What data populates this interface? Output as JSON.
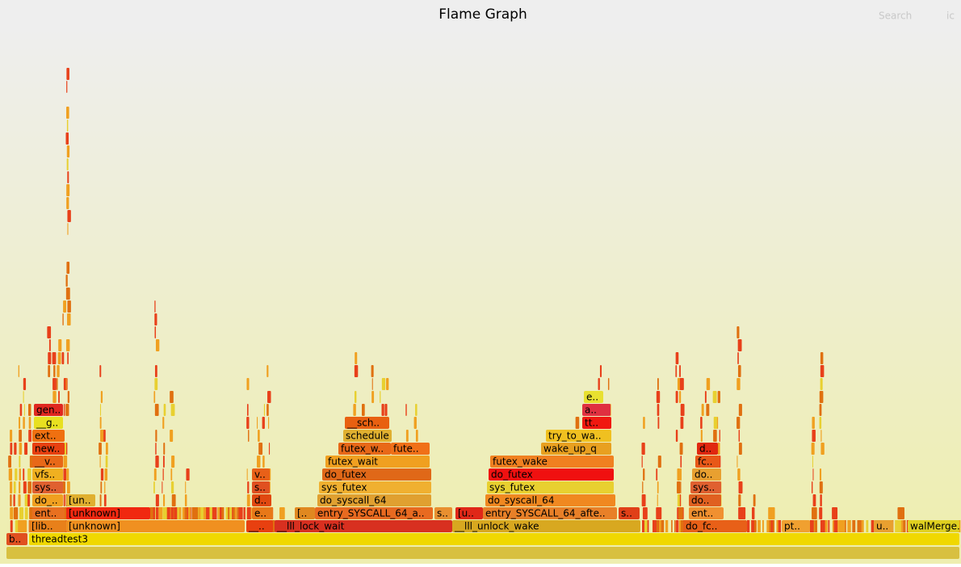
{
  "header": {
    "title": "Flame Graph",
    "search": "Search",
    "ic": "ic"
  },
  "frames": [
    {
      "label": "b.."
    },
    {
      "label": "threadtest3"
    },
    {
      "label": "[lib.."
    },
    {
      "label": "[unknown]"
    },
    {
      "label": "__.."
    },
    {
      "label": "__lll_lock_wait"
    },
    {
      "label": "__lll_unlock_wake"
    },
    {
      "label": "do_fc.."
    },
    {
      "label": "pt.."
    },
    {
      "label": "u.."
    },
    {
      "label": "walMerge.."
    },
    {
      "label": "ent.."
    },
    {
      "label": "[unknown]"
    },
    {
      "label": "e.."
    },
    {
      "label": "[.."
    },
    {
      "label": "entry_SYSCALL_64_a.."
    },
    {
      "label": "s.."
    },
    {
      "label": "[u.."
    },
    {
      "label": "entry_SYSCALL_64_afte.."
    },
    {
      "label": "s.."
    },
    {
      "label": "ent.."
    },
    {
      "label": "do_.."
    },
    {
      "label": "[un.."
    },
    {
      "label": "d.."
    },
    {
      "label": "do_syscall_64"
    },
    {
      "label": "do_syscall_64"
    },
    {
      "label": "do.."
    },
    {
      "label": "sys.."
    },
    {
      "label": "s.."
    },
    {
      "label": "sys_futex"
    },
    {
      "label": "sys_futex"
    },
    {
      "label": "sys.."
    },
    {
      "label": "vfs.."
    },
    {
      "label": "v.."
    },
    {
      "label": "do_futex"
    },
    {
      "label": "do_futex"
    },
    {
      "label": "do.."
    },
    {
      "label": "__v.."
    },
    {
      "label": "futex_wait"
    },
    {
      "label": "futex_wake"
    },
    {
      "label": "fc.."
    },
    {
      "label": "new.."
    },
    {
      "label": "futex_w.."
    },
    {
      "label": "fute.."
    },
    {
      "label": "wake_up_q"
    },
    {
      "label": "d.."
    },
    {
      "label": "ext.."
    },
    {
      "label": "schedule"
    },
    {
      "label": "try_to_wa.."
    },
    {
      "label": "__g.."
    },
    {
      "label": "__sch.."
    },
    {
      "label": "tt.."
    },
    {
      "label": "gen.."
    },
    {
      "label": "a.."
    },
    {
      "label": "e.."
    }
  ]
}
